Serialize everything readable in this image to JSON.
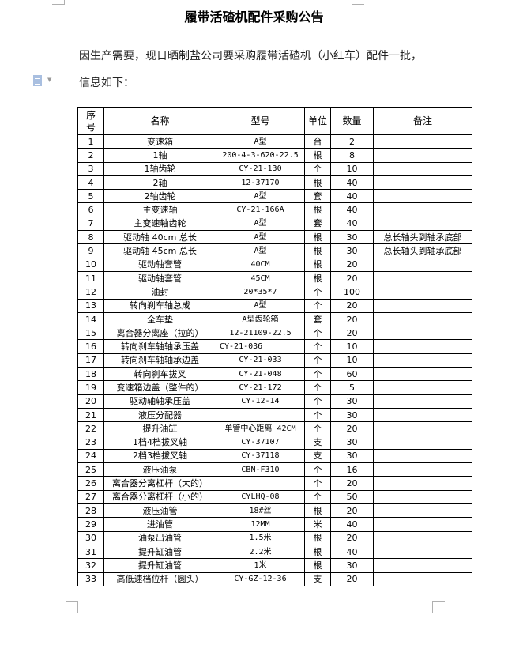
{
  "document": {
    "title": "履带活碴机配件采购公告",
    "intro_line1": "因生产需要，现日晒制盐公司要采购履带活碴机（小红车）配件一批，",
    "intro_line2": "信息如下：",
    "paragraph_icon": "document-icon"
  },
  "table": {
    "headers": [
      "序号",
      "名称",
      "型号",
      "单位",
      "数量",
      "备注"
    ],
    "rows": [
      [
        "1",
        "变速箱",
        "A型",
        "台",
        "2",
        ""
      ],
      [
        "2",
        "1轴",
        "200-4-3-620-22.5",
        "根",
        "8",
        ""
      ],
      [
        "3",
        "1轴齿轮",
        "CY-21-130",
        "个",
        "10",
        ""
      ],
      [
        "4",
        "2轴",
        "12-37170",
        "根",
        "40",
        ""
      ],
      [
        "5",
        "2轴齿轮",
        "A型",
        "套",
        "40",
        ""
      ],
      [
        "6",
        "主变速轴",
        "CY-21-166A",
        "根",
        "40",
        ""
      ],
      [
        "7",
        "主变速轴齿轮",
        "A型",
        "套",
        "40",
        ""
      ],
      [
        "8",
        "驱动轴 40cm 总长",
        "A型",
        "根",
        "30",
        "总长轴头到轴承底部"
      ],
      [
        "9",
        "驱动轴 45cm 总长",
        "A型",
        "根",
        "30",
        "总长轴头到轴承底部"
      ],
      [
        "10",
        "驱动轴套管",
        "40CM",
        "根",
        "20",
        ""
      ],
      [
        "11",
        "驱动轴套管",
        "45CM",
        "根",
        "20",
        ""
      ],
      [
        "12",
        "油封",
        "20*35*7",
        "个",
        "100",
        ""
      ],
      [
        "13",
        "转向刹车轴总成",
        "A型",
        "个",
        "20",
        ""
      ],
      [
        "14",
        "全车垫",
        "A型齿轮箱",
        "套",
        "20",
        ""
      ],
      [
        "15",
        "离合器分离座（拉的）",
        "12-21109-22.5",
        "个",
        "20",
        ""
      ],
      [
        "16",
        "转向刹车轴轴承压盖",
        "CY-21-036",
        "个",
        "10",
        ""
      ],
      [
        "17",
        "转向刹车轴轴承边盖",
        "CY-21-033",
        "个",
        "10",
        ""
      ],
      [
        "18",
        "转向刹车拔叉",
        "CY-21-048",
        "个",
        "60",
        ""
      ],
      [
        "19",
        "变速箱边盖（整件的）",
        "CY-21-172",
        "个",
        "5",
        ""
      ],
      [
        "20",
        "驱动轴轴承压盖",
        "CY-12-14",
        "个",
        "30",
        ""
      ],
      [
        "21",
        "液压分配器",
        "",
        "个",
        "30",
        ""
      ],
      [
        "22",
        "提升油缸",
        "单管中心距离 42CM",
        "个",
        "20",
        ""
      ],
      [
        "23",
        "1档4档拔叉轴",
        "CY-37107",
        "支",
        "30",
        ""
      ],
      [
        "24",
        "2档3档拔叉轴",
        "CY-37118",
        "支",
        "30",
        ""
      ],
      [
        "25",
        "液压油泵",
        "CBN-F310",
        "个",
        "16",
        ""
      ],
      [
        "26",
        "离合器分离杠杆（大的）",
        "",
        "个",
        "20",
        ""
      ],
      [
        "27",
        "离合器分离杠杆（小的）",
        "CYLHQ-08",
        "个",
        "50",
        ""
      ],
      [
        "28",
        "液压油管",
        "18#丝",
        "根",
        "20",
        ""
      ],
      [
        "29",
        "进油管",
        "12MM",
        "米",
        "40",
        ""
      ],
      [
        "30",
        "油泵出油管",
        "1.5米",
        "根",
        "20",
        ""
      ],
      [
        "31",
        "提升缸油管",
        "2.2米",
        "根",
        "40",
        ""
      ],
      [
        "32",
        "提升缸油管",
        "1米",
        "根",
        "30",
        ""
      ],
      [
        "33",
        "高低速档位杆（圆头）",
        "CY-GZ-12-36",
        "支",
        "20",
        ""
      ]
    ]
  }
}
